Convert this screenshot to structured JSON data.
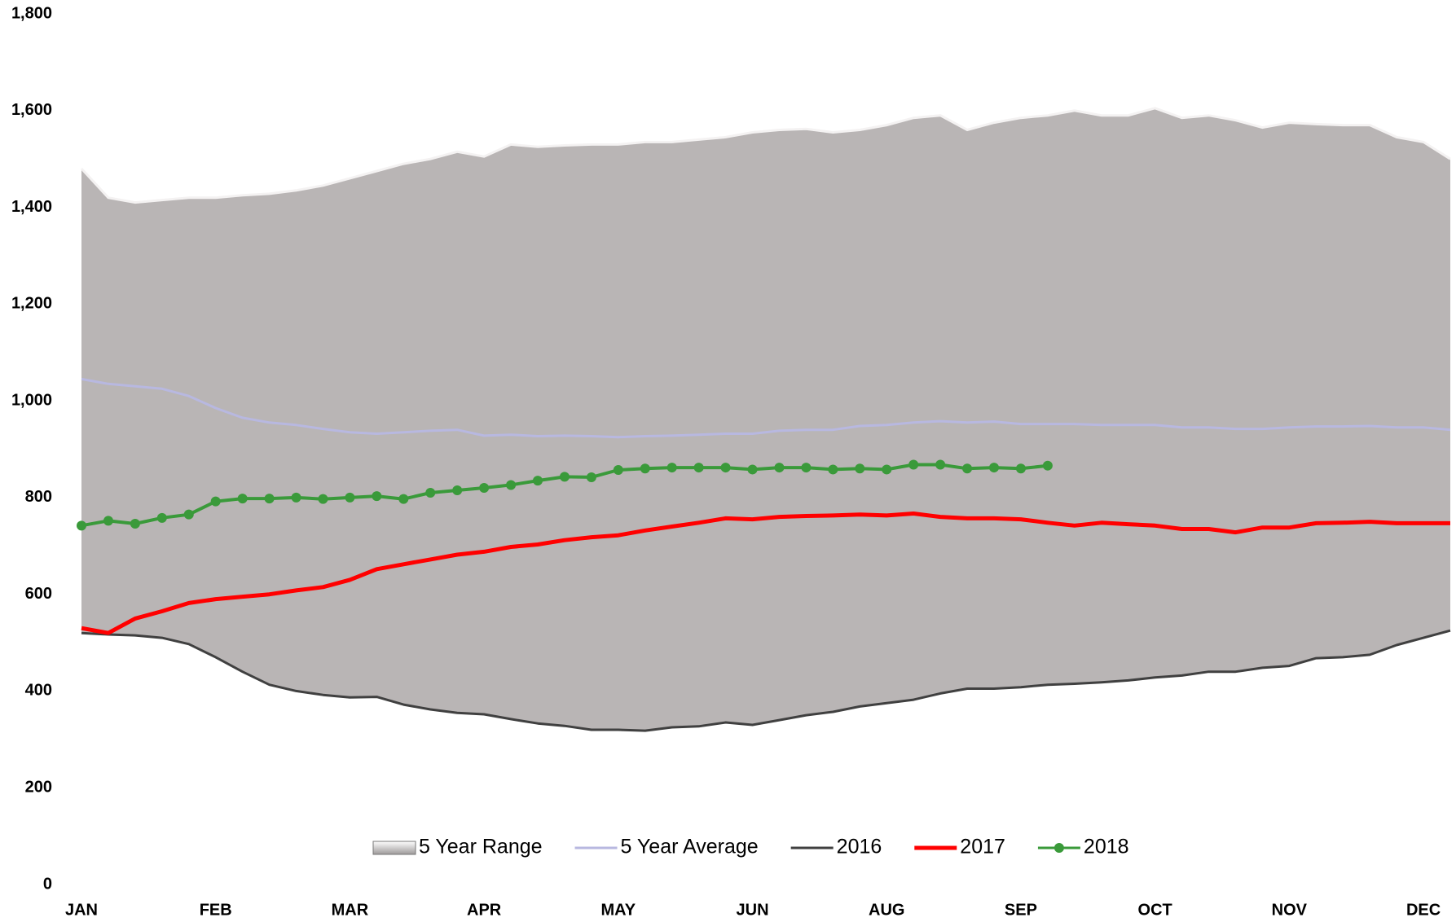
{
  "chart_data": {
    "type": "line",
    "categories": [
      "JAN",
      null,
      null,
      null,
      null,
      "FEB",
      null,
      null,
      null,
      null,
      "MAR",
      null,
      null,
      null,
      null,
      "APR",
      null,
      null,
      null,
      null,
      "MAY",
      null,
      null,
      null,
      null,
      "JUN",
      null,
      null,
      null,
      null,
      "AUG",
      null,
      null,
      null,
      null,
      "SEP",
      null,
      null,
      null,
      null,
      "OCT",
      null,
      null,
      null,
      null,
      "NOV",
      null,
      null,
      null,
      null,
      "DEC",
      null
    ],
    "ylim": [
      0,
      1800
    ],
    "yticks": [
      0,
      200,
      400,
      600,
      800,
      {
        "value": 1000,
        "label": "1,000"
      },
      {
        "value": 1200,
        "label": "1,200"
      },
      {
        "value": 1400,
        "label": "1,400"
      },
      {
        "value": 1600,
        "label": "1,600"
      },
      {
        "value": 1800,
        "label": "1,800"
      }
    ],
    "grid": false,
    "legend": "bottom",
    "series": [
      {
        "name": "5 Year Range",
        "style": "range",
        "color": "#b9b5b5",
        "high": [
          1480,
          1420,
          1410,
          1415,
          1420,
          1420,
          1425,
          1428,
          1435,
          1445,
          1460,
          1475,
          1490,
          1500,
          1515,
          1505,
          1530,
          1525,
          1528,
          1530,
          1530,
          1535,
          1535,
          1540,
          1545,
          1555,
          1560,
          1562,
          1555,
          1560,
          1570,
          1585,
          1590,
          1560,
          1575,
          1585,
          1590,
          1600,
          1590,
          1590,
          1605,
          1585,
          1590,
          1580,
          1565,
          1575,
          1572,
          1570,
          1570,
          1545,
          1535,
          1500
        ],
        "low": [
          520,
          517,
          515,
          510,
          497,
          470,
          440,
          413,
          400,
          392,
          387,
          388,
          372,
          362,
          355,
          352,
          342,
          333,
          328,
          320,
          320,
          318,
          325,
          327,
          335,
          330,
          340,
          350,
          357,
          368,
          375,
          382,
          395,
          405,
          405,
          408,
          413,
          415,
          418,
          422,
          428,
          432,
          440,
          440,
          448,
          452,
          468,
          470,
          475,
          495,
          510,
          525
        ]
      },
      {
        "name": "5 Year Average",
        "style": "line",
        "color": "#b8b8e0",
        "values": [
          1045,
          1035,
          1030,
          1025,
          1010,
          985,
          965,
          955,
          950,
          942,
          935,
          932,
          935,
          938,
          940,
          928,
          930,
          927,
          928,
          927,
          925,
          927,
          928,
          930,
          932,
          932,
          938,
          940,
          940,
          948,
          950,
          955,
          958,
          955,
          957,
          952,
          952,
          952,
          950,
          950,
          950,
          945,
          945,
          942,
          942,
          945,
          947,
          947,
          948,
          945,
          945,
          940
        ]
      },
      {
        "name": "2016",
        "style": "line",
        "color": "#404040",
        "values": [
          520,
          517,
          515,
          510,
          497,
          470,
          440,
          413,
          400,
          392,
          387,
          388,
          372,
          362,
          355,
          352,
          342,
          333,
          328,
          320,
          320,
          318,
          325,
          327,
          335,
          330,
          340,
          350,
          357,
          368,
          375,
          382,
          395,
          405,
          405,
          408,
          413,
          415,
          418,
          422,
          428,
          432,
          440,
          440,
          448,
          452,
          468,
          470,
          475,
          495,
          510,
          525
        ]
      },
      {
        "name": "2017",
        "style": "line",
        "color": "#ff0000",
        "values": [
          530,
          520,
          550,
          565,
          582,
          590,
          595,
          600,
          608,
          615,
          630,
          652,
          662,
          672,
          682,
          688,
          698,
          703,
          712,
          718,
          722,
          732,
          740,
          748,
          757,
          755,
          760,
          762,
          763,
          765,
          763,
          767,
          760,
          757,
          757,
          755,
          748,
          742,
          748,
          745,
          742,
          735,
          735,
          728,
          738,
          738,
          747,
          748,
          750,
          747,
          747,
          747
        ]
      },
      {
        "name": "2018",
        "style": "markers",
        "color": "#3a9a3a",
        "values": [
          742,
          752,
          746,
          758,
          765,
          792,
          798,
          798,
          800,
          797,
          800,
          803,
          797,
          810,
          815,
          820,
          826,
          835,
          843,
          842,
          857,
          860,
          862,
          862,
          862,
          858,
          862,
          862,
          858,
          860,
          858,
          868,
          868,
          860,
          862,
          860,
          866,
          null,
          null,
          null,
          null,
          null,
          null,
          null,
          null,
          null,
          null,
          null,
          null,
          null,
          null,
          null
        ]
      }
    ]
  }
}
